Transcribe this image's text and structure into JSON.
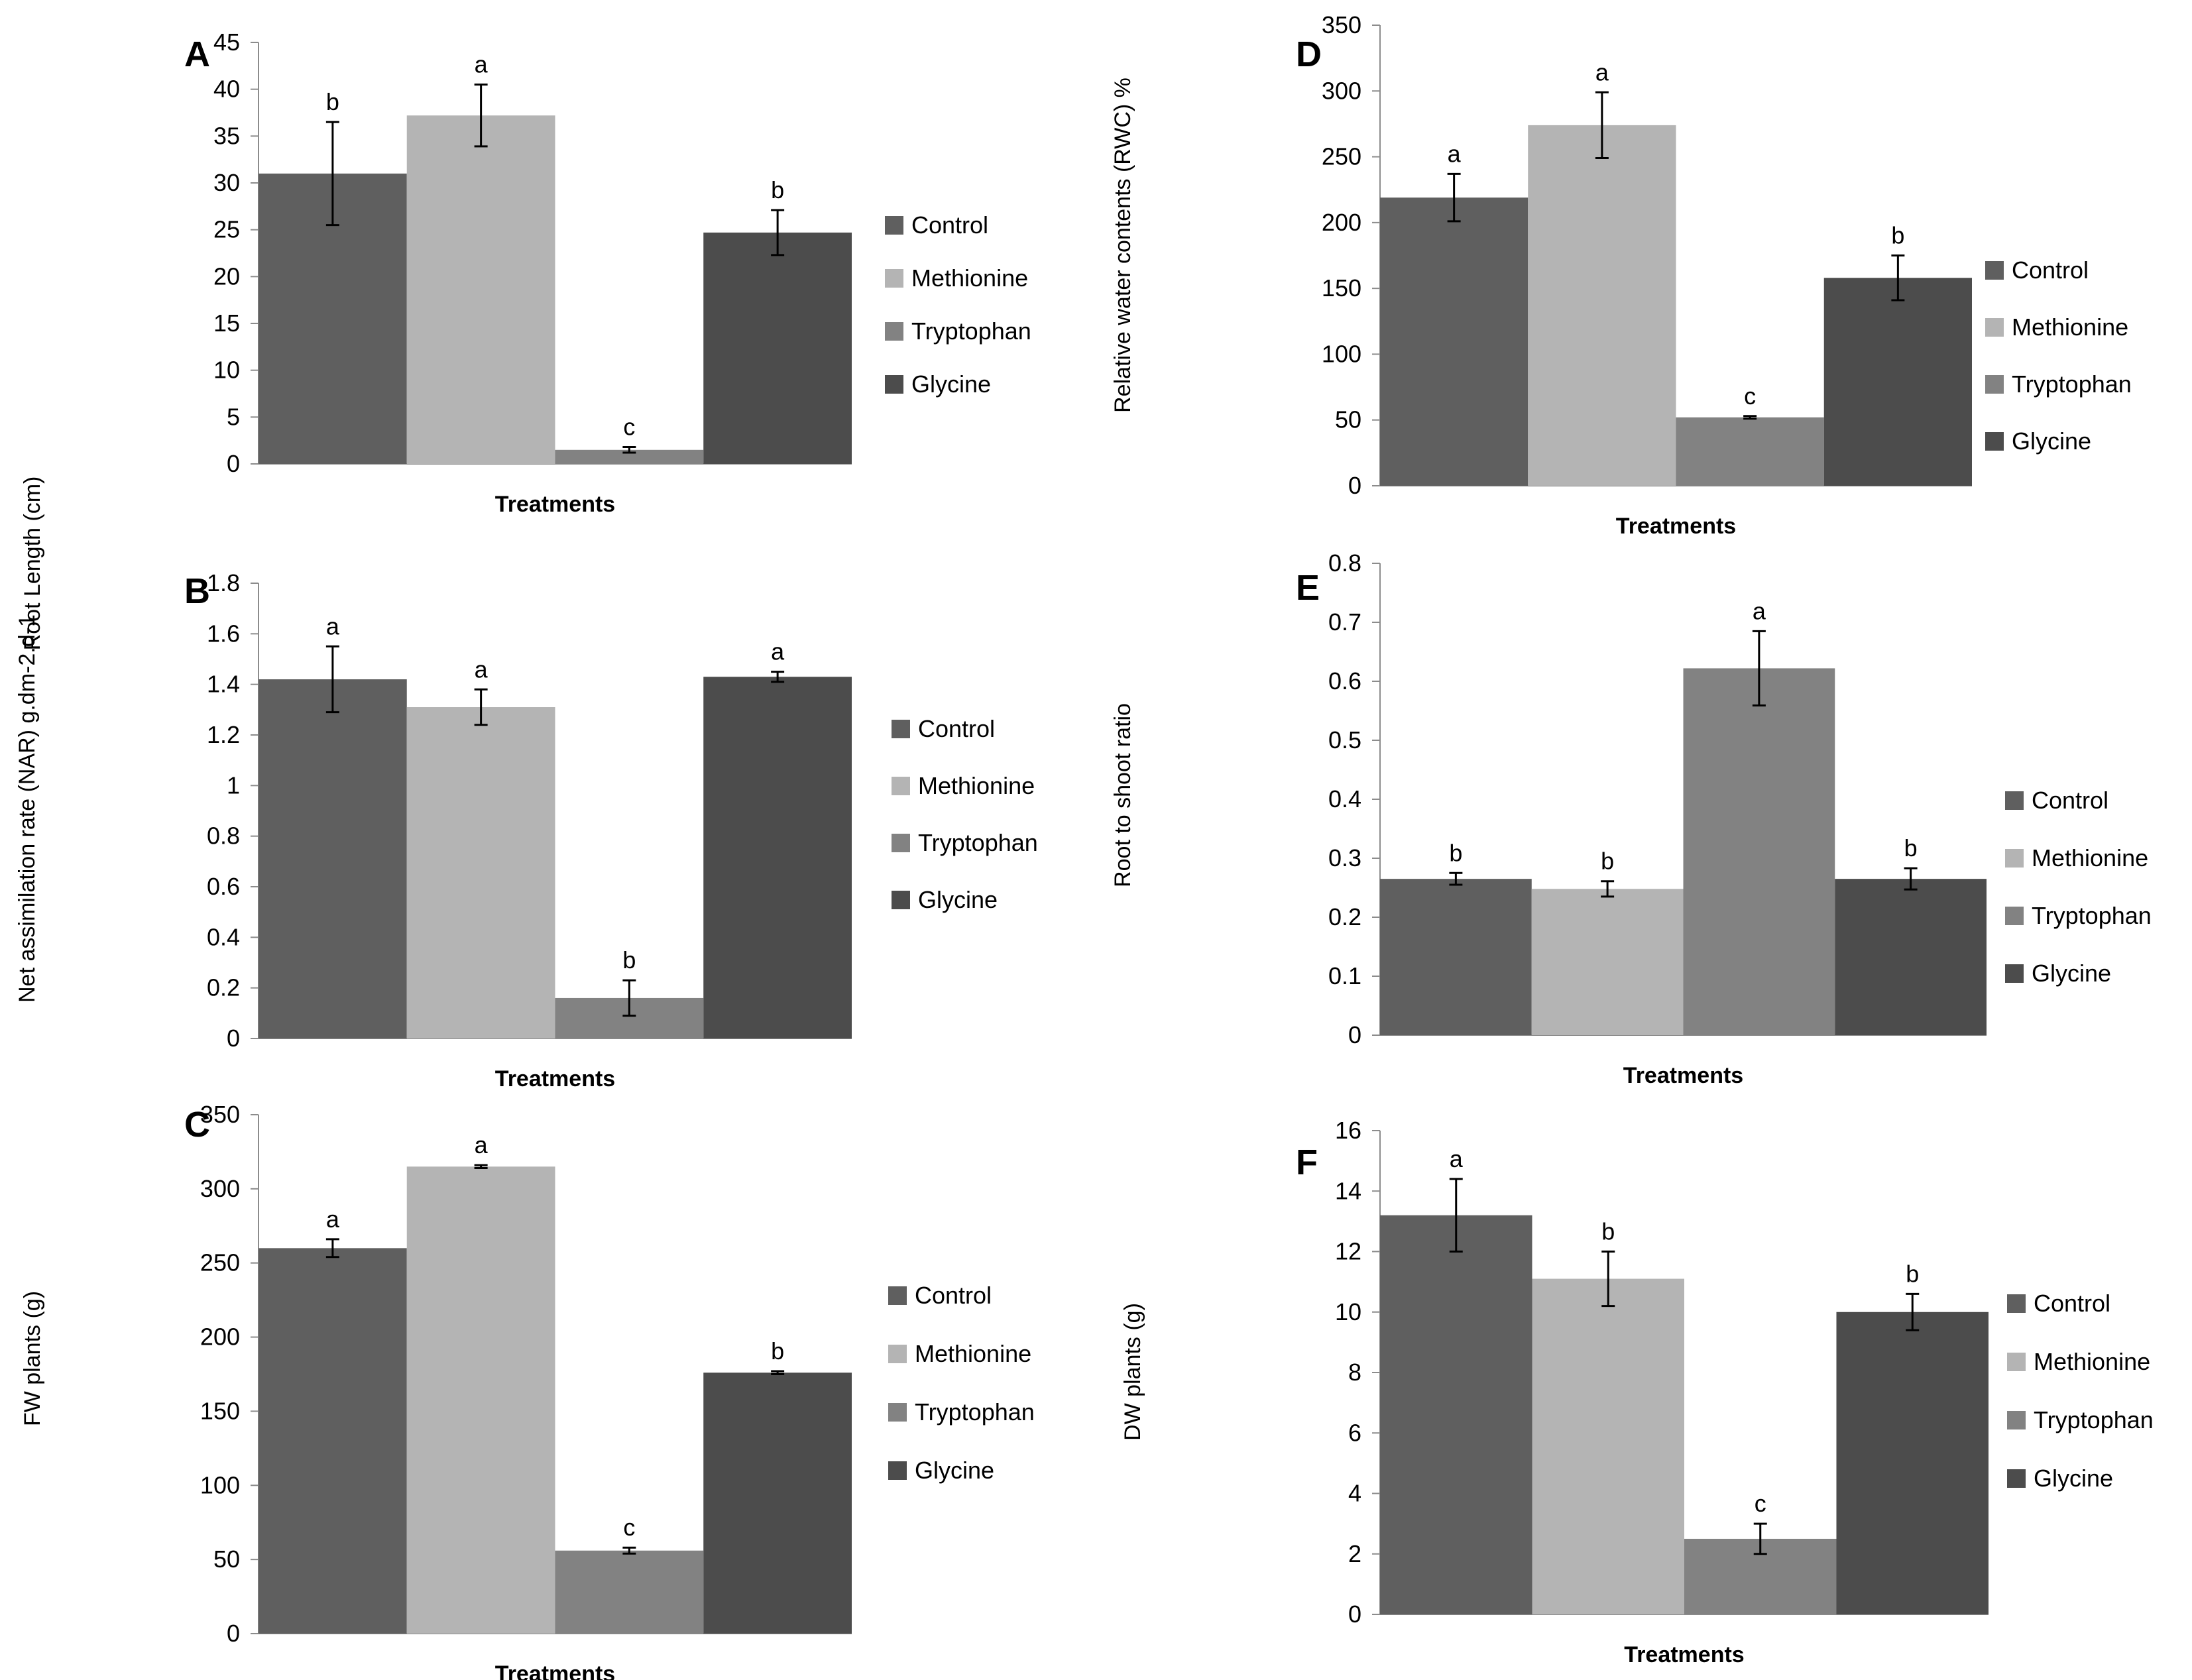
{
  "chart_data": [
    {
      "panel": "A",
      "type": "bar",
      "categories": [
        "Control",
        "Methionine",
        "Tryptophan",
        "Glycine"
      ],
      "values": [
        31,
        37.2,
        1.5,
        24.7
      ],
      "errors": [
        5.5,
        3.3,
        0.3,
        2.4
      ],
      "significance": [
        "b",
        "a",
        "c",
        "b"
      ],
      "xlabel": "Treatments",
      "ylabel": "Root Length (cm)",
      "ylim": [
        0,
        45
      ],
      "yticks": [
        0,
        5,
        10,
        15,
        20,
        25,
        30,
        35,
        40,
        45
      ],
      "legend": [
        "Control",
        "Methionine",
        "Tryptophan",
        "Glycine"
      ],
      "legend_position": "right"
    },
    {
      "panel": "B",
      "type": "bar",
      "categories": [
        "Control",
        "Methionine",
        "Tryptophan",
        "Glycine"
      ],
      "values": [
        1.42,
        1.31,
        0.16,
        1.43
      ],
      "errors": [
        0.13,
        0.07,
        0.07,
        0.02
      ],
      "significance": [
        "a",
        "a",
        "b",
        "a"
      ],
      "xlabel": "Treatments",
      "ylabel": "Net assimilation rate (NAR) g.dm-2.d-1",
      "ylim": [
        0,
        1.8
      ],
      "yticks": [
        "0",
        "0.2",
        "0.4",
        "0.6",
        "0.8",
        "1",
        "1.2",
        "1.4",
        "1.6",
        "1.8"
      ],
      "legend": [
        "Control",
        "Methionine",
        "Tryptophan",
        "Glycine"
      ],
      "legend_position": "right"
    },
    {
      "panel": "C",
      "type": "bar",
      "categories": [
        "Control",
        "Methionine",
        "Tryptophan",
        "Glycine"
      ],
      "values": [
        260,
        315,
        56,
        176
      ],
      "errors": [
        6,
        1,
        2,
        1
      ],
      "significance": [
        "a",
        "a",
        "c",
        "b"
      ],
      "xlabel": "Treatments",
      "ylabel": "FW plants (g)",
      "ylim": [
        0,
        350
      ],
      "yticks": [
        0,
        50,
        100,
        150,
        200,
        250,
        300,
        350
      ],
      "legend": [
        "Control",
        "Methionine",
        "Tryptophan",
        "Glycine"
      ],
      "legend_position": "right"
    },
    {
      "panel": "D",
      "type": "bar",
      "categories": [
        "Control",
        "Methionine",
        "Tryptophan",
        "Glycine"
      ],
      "values": [
        219,
        274,
        52,
        158
      ],
      "errors": [
        18,
        25,
        1,
        17
      ],
      "significance": [
        "a",
        "a",
        "c",
        "b"
      ],
      "xlabel": "Treatments",
      "ylabel": "Relative water contents (RWC) %",
      "ylim": [
        0,
        350
      ],
      "yticks": [
        0,
        50,
        100,
        150,
        200,
        250,
        300,
        350
      ],
      "legend": [
        "Control",
        "Methionine",
        "Tryptophan",
        "Glycine"
      ],
      "legend_position": "right"
    },
    {
      "panel": "E",
      "type": "bar",
      "categories": [
        "Control",
        "Methionine",
        "Tryptophan",
        "Glycine"
      ],
      "values": [
        0.265,
        0.248,
        0.622,
        0.265
      ],
      "errors": [
        0.01,
        0.013,
        0.063,
        0.018
      ],
      "significance": [
        "b",
        "b",
        "a",
        "b"
      ],
      "xlabel": "Treatments",
      "ylabel": "Root to shoot ratio",
      "ylim": [
        0,
        0.8
      ],
      "yticks": [
        "0",
        "0.1",
        "0.2",
        "0.3",
        "0.4",
        "0.5",
        "0.6",
        "0.7",
        "0.8"
      ],
      "legend": [
        "Control",
        "Methionine",
        "Tryptophan",
        "Glycine"
      ],
      "legend_position": "right"
    },
    {
      "panel": "F",
      "type": "bar",
      "categories": [
        "Control",
        "Methionine",
        "Tryptophan",
        "Glycine"
      ],
      "values": [
        13.2,
        11.1,
        2.5,
        10
      ],
      "errors": [
        1.2,
        0.9,
        0.5,
        0.6
      ],
      "significance": [
        "a",
        "b",
        "c",
        "b"
      ],
      "xlabel": "Treatments",
      "ylabel": "DW plants (g)",
      "ylim": [
        0,
        16
      ],
      "yticks": [
        0,
        2,
        4,
        6,
        8,
        10,
        12,
        14,
        16
      ],
      "legend": [
        "Control",
        "Methionine",
        "Tryptophan",
        "Glycine"
      ],
      "legend_position": "right"
    }
  ],
  "colors": {
    "Control": "#5f5f5f",
    "Methionine": "#b4b4b4",
    "Tryptophan": "#828282",
    "Glycine": "#4c4c4c",
    "axis": "#8c8c8c",
    "error_bar": "#000000"
  }
}
